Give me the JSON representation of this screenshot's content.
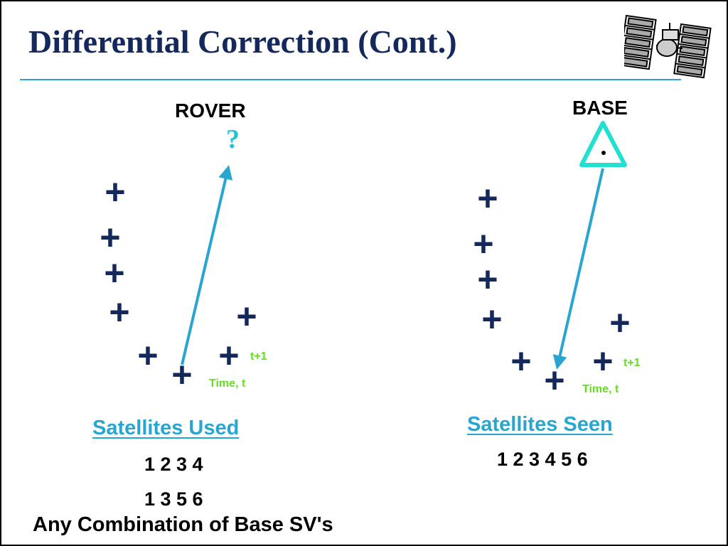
{
  "slide": {
    "title": "Differential Correction (Cont.)",
    "footer": "Any Combination of Base SV's"
  },
  "rover": {
    "label": "ROVER",
    "unknown_marker": "?",
    "time_label": "Time, t",
    "next_time_label": "t+1",
    "heading": "Satellites Used",
    "rows": [
      "1 2 3 4",
      "1 3 5 6"
    ]
  },
  "base": {
    "label": "BASE",
    "time_label": "Time, t",
    "next_time_label": "t+1",
    "heading": "Satellites Seen",
    "rows": [
      "1 2 3 4 5 6"
    ]
  },
  "colors": {
    "title": "#14285c",
    "rule": "#2aa3d0",
    "satellite_marker": "#14285c",
    "arrow": "#29a6cf",
    "base_triangle": "#22e0d0",
    "time_label": "#66dd22",
    "heading": "#29a6cf"
  },
  "icons": {
    "satellite": "satellite-icon",
    "satellite_position": "plus-marker",
    "base_station": "triangle-marker"
  }
}
